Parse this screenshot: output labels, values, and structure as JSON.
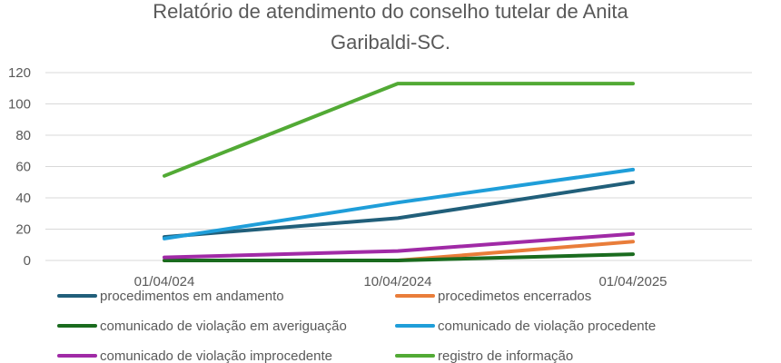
{
  "chart_data": {
    "type": "line",
    "title_lines": [
      "Relatório de atendimento do conselho tutelar de Anita",
      "Garibaldi-SC."
    ],
    "title": "Relatório de atendimento do conselho tutelar de Anita Garibaldi-SC.",
    "xlabel": "",
    "ylabel": "",
    "categories": [
      "01/04/024",
      "10/04/2024",
      "01/04/2025"
    ],
    "ylim": [
      0,
      120
    ],
    "yticks": [
      0,
      20,
      40,
      60,
      80,
      100,
      120
    ],
    "grid": true,
    "legend_position": "bottom",
    "series": [
      {
        "name": "procedimentos em andamento",
        "color": "#215f7a",
        "values": [
          15,
          27,
          50
        ]
      },
      {
        "name": "procedimetos encerrados",
        "color": "#e97d3a",
        "values": [
          0,
          0,
          12
        ]
      },
      {
        "name": "comunicado de violação em averiguação",
        "color": "#1a6b1e",
        "values": [
          0,
          0,
          4
        ]
      },
      {
        "name": "comunicado de violação procedente",
        "color": "#1f9ed9",
        "values": [
          14,
          37,
          58
        ]
      },
      {
        "name": "comunicado de violação improcedente",
        "color": "#a02aa6",
        "values": [
          2,
          6,
          17
        ]
      },
      {
        "name": "registro de informação",
        "color": "#52aa35",
        "values": [
          54,
          113,
          113
        ]
      }
    ]
  }
}
